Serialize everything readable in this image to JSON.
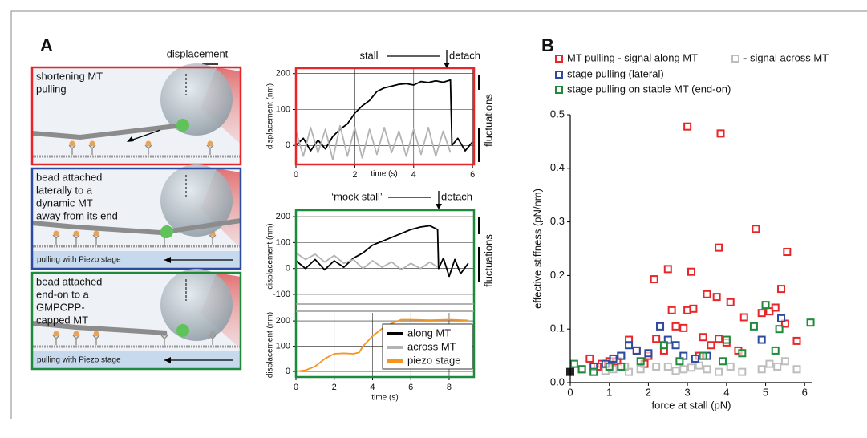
{
  "panel_labels": [
    "A",
    "B"
  ],
  "displacement_label": "displacement",
  "schematics": [
    {
      "lines": [
        "shortening MT",
        "pulling"
      ]
    },
    {
      "lines": [
        "bead attached",
        "laterally to a",
        "dynamic MT",
        "away from its end"
      ],
      "stage_label": "pulling with Piezo stage"
    },
    {
      "lines": [
        "bead attached",
        "end-on to a",
        "GMPCPP-",
        "capped MT"
      ],
      "stage_label": "pulling with Piezo stage"
    }
  ],
  "chart_data": [
    {
      "type": "line",
      "ylabel": "displacement (nm)",
      "xlabel": "time (s)",
      "annotations": [
        "stall",
        "detach",
        "fluctuations"
      ],
      "xlim": [
        0,
        6.05
      ],
      "xticks": [
        0,
        2,
        4,
        6
      ],
      "ylim": [
        -53,
        215
      ],
      "yticks": [
        0,
        100,
        200
      ],
      "grid": true,
      "series": [
        {
          "color": "#000000",
          "x": [
            0,
            0.25,
            0.5,
            0.75,
            1,
            1.25,
            1.5,
            1.75,
            2,
            2.25,
            2.5,
            2.75,
            3,
            3.25,
            3.5,
            3.75,
            4,
            4.25,
            4.5,
            4.75,
            5,
            5.25,
            5.3,
            5.5,
            5.75,
            6
          ],
          "values": [
            0,
            20,
            -15,
            15,
            -10,
            25,
            45,
            60,
            90,
            110,
            125,
            150,
            160,
            165,
            170,
            172,
            168,
            178,
            175,
            180,
            176,
            182,
            0,
            20,
            -15,
            10
          ]
        },
        {
          "color": "#b3b3b3",
          "x": [
            0,
            0.25,
            0.5,
            0.75,
            1,
            1.25,
            1.5,
            1.75,
            2,
            2.25,
            2.5,
            2.75,
            3,
            3.25,
            3.5,
            3.75,
            4,
            4.25,
            4.5,
            4.75,
            5,
            5.25
          ],
          "values": [
            40,
            -30,
            50,
            -20,
            45,
            -40,
            55,
            -30,
            50,
            -35,
            45,
            -25,
            50,
            -20,
            40,
            -30,
            45,
            -25,
            50,
            -30,
            40,
            -20
          ]
        }
      ]
    },
    {
      "type": "line",
      "ylabel": "displacement (nm)",
      "annotations": [
        "‘mock stall’",
        "detach",
        "fluctuations"
      ],
      "xlim": [
        0,
        9.3
      ],
      "ylim": [
        -131,
        225
      ],
      "yticks": [
        -100,
        0,
        100,
        200
      ],
      "grid": true,
      "series": [
        {
          "name": "along MT",
          "color": "#000000",
          "x": [
            0,
            0.5,
            1,
            1.5,
            2,
            2.5,
            3,
            3.5,
            4,
            4.5,
            5,
            5.5,
            6,
            6.5,
            7,
            7.4,
            7.45,
            7.7,
            8,
            8.3,
            8.6,
            9
          ],
          "values": [
            30,
            0,
            35,
            -5,
            30,
            5,
            40,
            60,
            90,
            105,
            120,
            135,
            150,
            160,
            165,
            150,
            0,
            40,
            -30,
            35,
            -20,
            20
          ]
        },
        {
          "name": "across MT",
          "color": "#b3b3b3",
          "x": [
            0,
            0.5,
            1,
            1.5,
            2,
            2.5,
            3,
            3.5,
            4,
            4.5,
            5,
            5.5,
            6,
            6.5,
            7,
            7.4
          ],
          "values": [
            60,
            35,
            55,
            25,
            50,
            20,
            35,
            0,
            30,
            5,
            25,
            -5,
            20,
            0,
            25,
            5
          ]
        }
      ]
    },
    {
      "type": "line",
      "ylabel": "displacement (nm)",
      "xlabel": "time (s)",
      "xlim": [
        0,
        9.3
      ],
      "xticks": [
        0,
        2,
        4,
        6,
        8
      ],
      "ylim": [
        -22,
        232
      ],
      "yticks": [
        0,
        100,
        200
      ],
      "grid": true,
      "series": [
        {
          "name": "piezo stage",
          "color": "#f7941d",
          "x": [
            0,
            0.5,
            1,
            1.5,
            2,
            2.5,
            3,
            3.3,
            3.5,
            4,
            4.5,
            5,
            5.5,
            6,
            7,
            8,
            9
          ],
          "values": [
            0,
            5,
            20,
            50,
            70,
            72,
            70,
            75,
            100,
            140,
            170,
            190,
            205,
            205,
            203,
            205,
            202
          ]
        }
      ]
    },
    {
      "type": "scatter",
      "xlabel": "force at stall (pN)",
      "ylabel": "effective stiffness (pN/nm)",
      "xlim": [
        0,
        6.2
      ],
      "xticks": [
        0,
        1,
        2,
        3,
        4,
        5,
        6
      ],
      "ylim": [
        0,
        0.5
      ],
      "yticks": [
        {
          "value": 0,
          "label": "0.0"
        },
        0.1,
        0.2,
        0.3,
        0.4,
        0.5
      ],
      "series": [
        {
          "name": "MT pulling - signal along MT",
          "color": "#e8262a",
          "x": [
            3.0,
            3.85,
            3.8,
            4.75,
            5.55,
            2.5,
            3.1,
            2.15,
            3.5,
            3.75,
            4.1,
            5.4,
            2.6,
            3.0,
            3.15,
            4.9,
            5.1,
            5.25,
            4.45,
            2.7,
            2.9,
            1.5,
            2.2,
            3.4,
            3.8,
            5.8,
            1.0,
            0.8,
            0.5,
            0.3,
            1.3,
            1.7,
            2.0,
            3.6,
            4.3,
            4.0,
            1.2,
            0.7,
            2.4,
            3.3,
            1.9,
            5.5
          ],
          "values": [
            0.478,
            0.465,
            0.252,
            0.287,
            0.244,
            0.212,
            0.207,
            0.193,
            0.165,
            0.16,
            0.15,
            0.175,
            0.135,
            0.135,
            0.138,
            0.13,
            0.133,
            0.14,
            0.122,
            0.105,
            0.102,
            0.08,
            0.082,
            0.085,
            0.082,
            0.078,
            0.04,
            0.035,
            0.045,
            0.025,
            0.05,
            0.06,
            0.05,
            0.07,
            0.06,
            0.075,
            0.04,
            0.03,
            0.06,
            0.05,
            0.035,
            0.11
          ]
        },
        {
          "name": "- signal across MT",
          "color": "#bdbdbd",
          "x": [
            0.6,
            0.9,
            1.1,
            1.5,
            1.8,
            2.2,
            2.5,
            2.9,
            3.1,
            3.5,
            3.8,
            4.4,
            4.9,
            5.1,
            5.3,
            5.5,
            5.8,
            3.3,
            2.7,
            1.4,
            4.1
          ],
          "values": [
            0.02,
            0.022,
            0.025,
            0.02,
            0.025,
            0.03,
            0.03,
            0.025,
            0.028,
            0.025,
            0.02,
            0.02,
            0.025,
            0.035,
            0.03,
            0.04,
            0.025,
            0.032,
            0.022,
            0.03,
            0.03
          ]
        },
        {
          "name": "stage pulling (lateral)",
          "color": "#2b4aa0",
          "x": [
            0.6,
            0.9,
            1.1,
            1.3,
            1.5,
            1.7,
            2.0,
            2.3,
            2.5,
            2.7,
            2.9,
            3.2,
            3.5,
            4.9,
            5.4
          ],
          "values": [
            0.03,
            0.035,
            0.045,
            0.05,
            0.07,
            0.06,
            0.055,
            0.105,
            0.08,
            0.07,
            0.05,
            0.045,
            0.05,
            0.08,
            0.12
          ]
        },
        {
          "name": "stage pulling on stable MT (end-on)",
          "color": "#1f8a3b",
          "x": [
            0.1,
            0.3,
            0.6,
            1.0,
            1.3,
            1.8,
            2.4,
            2.8,
            3.4,
            4.0,
            4.4,
            4.7,
            5.0,
            5.25,
            5.35,
            6.15,
            3.9
          ],
          "values": [
            0.035,
            0.025,
            0.02,
            0.03,
            0.03,
            0.04,
            0.07,
            0.04,
            0.05,
            0.08,
            0.055,
            0.105,
            0.145,
            0.06,
            0.1,
            0.112,
            0.04
          ]
        },
        {
          "color": "#222222",
          "x": [
            0
          ],
          "values": [
            0.02
          ]
        }
      ]
    }
  ]
}
